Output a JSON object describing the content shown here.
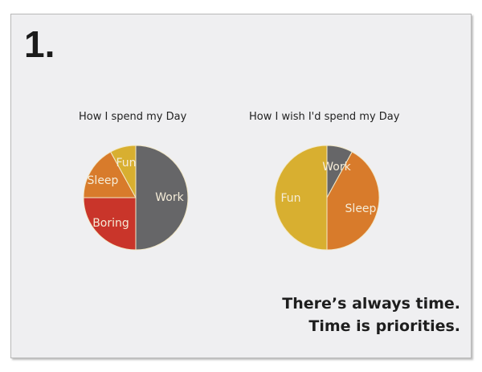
{
  "slide_number": "1.",
  "chart_data": [
    {
      "type": "pie",
      "title": "How I spend my Day",
      "slices": [
        {
          "label": "Work",
          "value": 50,
          "color": "#666668"
        },
        {
          "label": "Boring",
          "value": 25,
          "color": "#c9352a"
        },
        {
          "label": "Sleep",
          "value": 17,
          "color": "#d87b2b"
        },
        {
          "label": "Fun",
          "value": 8,
          "color": "#d8af30"
        }
      ]
    },
    {
      "type": "pie",
      "title": "How I wish I'd spend my Day",
      "slices": [
        {
          "label": "Work",
          "value": 8,
          "color": "#666668"
        },
        {
          "label": "Sleep",
          "value": 42,
          "color": "#d87b2b"
        },
        {
          "label": "Fun",
          "value": 50,
          "color": "#d8af30"
        }
      ]
    }
  ],
  "tagline": {
    "line1": "There’s always time.",
    "line2": "Time is priorities."
  }
}
